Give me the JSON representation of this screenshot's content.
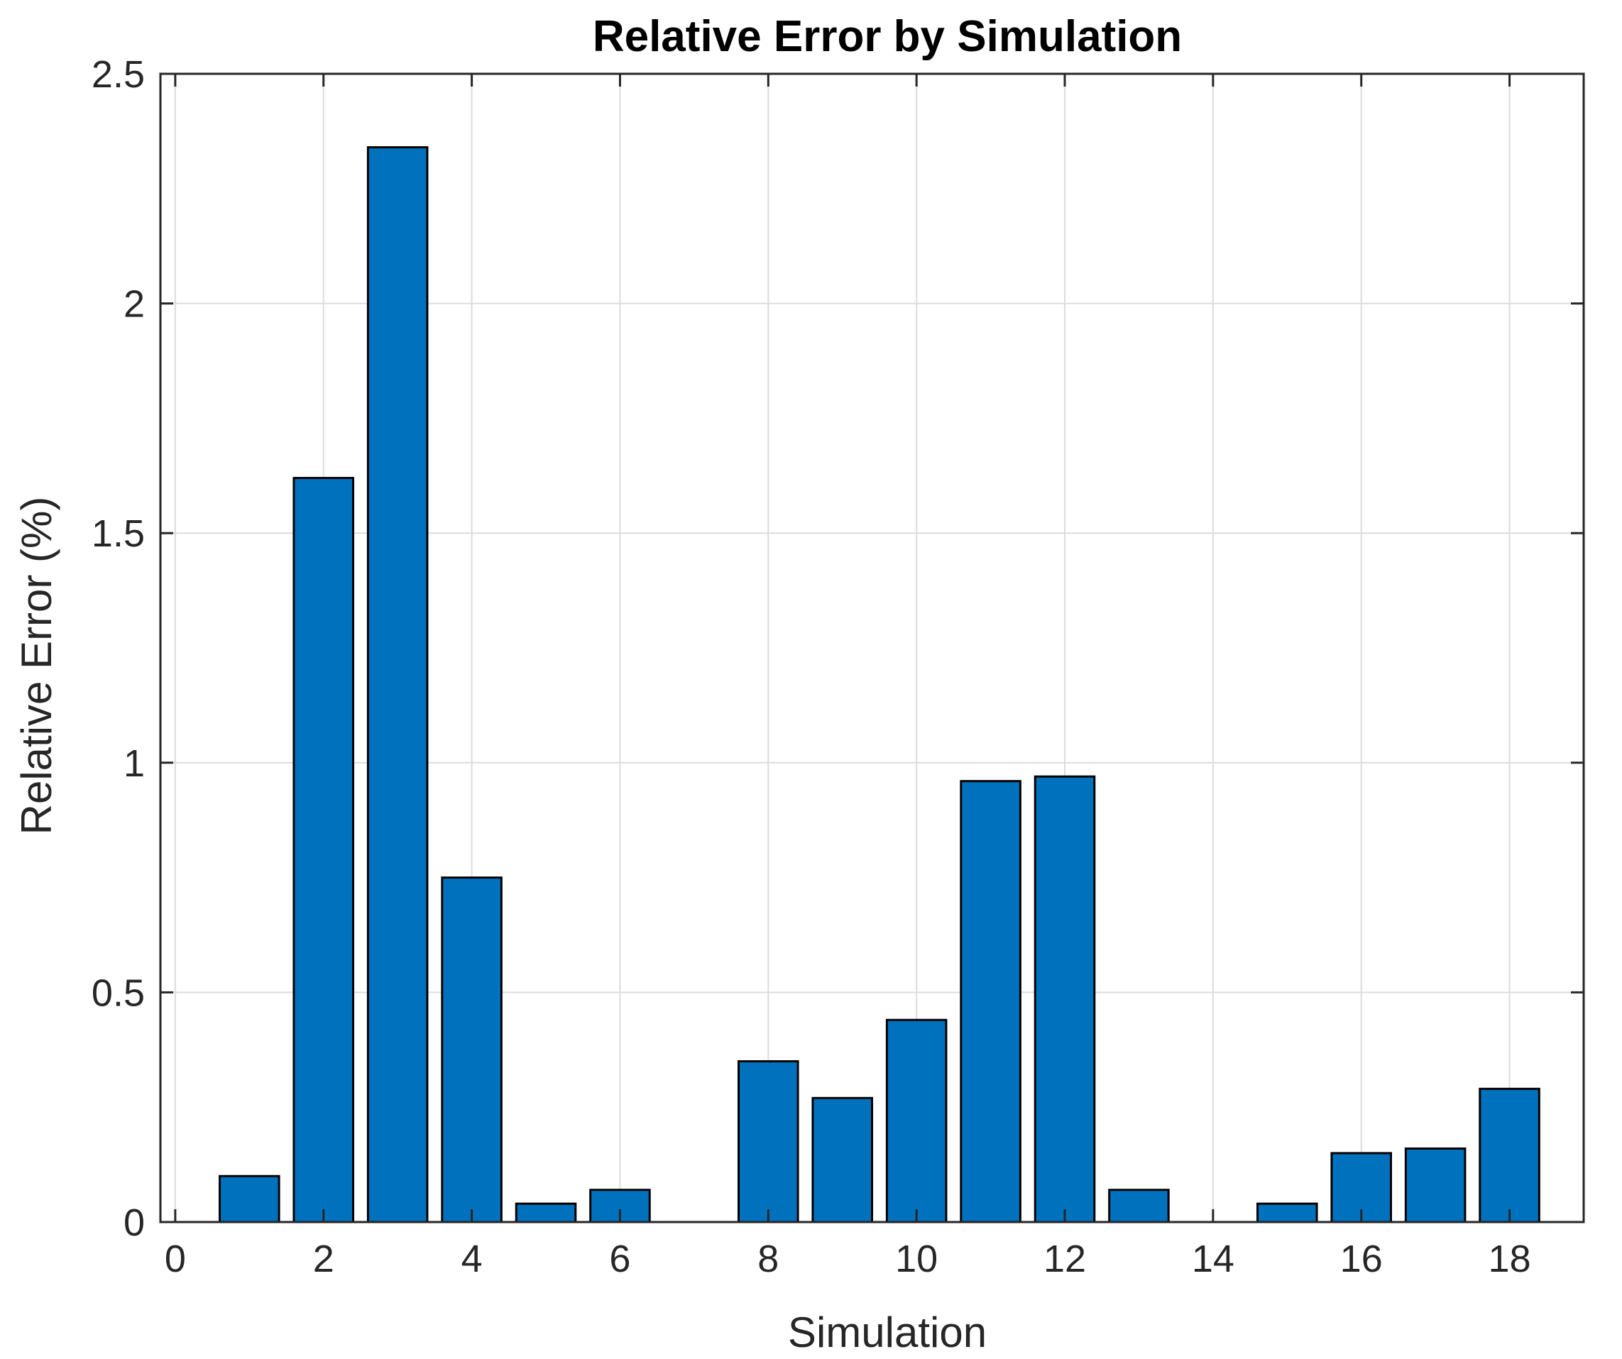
{
  "chart_data": {
    "type": "bar",
    "title": "Relative Error by Simulation",
    "xlabel": "Simulation",
    "ylabel": "Relative Error (%)",
    "x": [
      1,
      2,
      3,
      4,
      5,
      6,
      7,
      8,
      9,
      10,
      11,
      12,
      13,
      14,
      15,
      16,
      17,
      18
    ],
    "values": [
      0.1,
      1.62,
      2.34,
      0.75,
      0.04,
      0.07,
      0,
      0.35,
      0.27,
      0.44,
      0.96,
      0.97,
      0.07,
      0,
      0.04,
      0.15,
      0.16,
      0.29
    ],
    "xlim": [
      -0.2,
      19
    ],
    "ylim": [
      0,
      2.5
    ],
    "xticks": [
      0,
      2,
      4,
      6,
      8,
      10,
      12,
      14,
      16,
      18
    ],
    "yticks": [
      0,
      0.5,
      1,
      1.5,
      2,
      2.5
    ],
    "xtick_labels": [
      "0",
      "2",
      "4",
      "6",
      "8",
      "10",
      "12",
      "14",
      "16",
      "18"
    ],
    "ytick_labels": [
      "0",
      "0.5",
      "1",
      "1.5",
      "2",
      "2.5"
    ],
    "grid": true,
    "bar_color": "#0072BD",
    "bar_edge_color": "#000000"
  }
}
